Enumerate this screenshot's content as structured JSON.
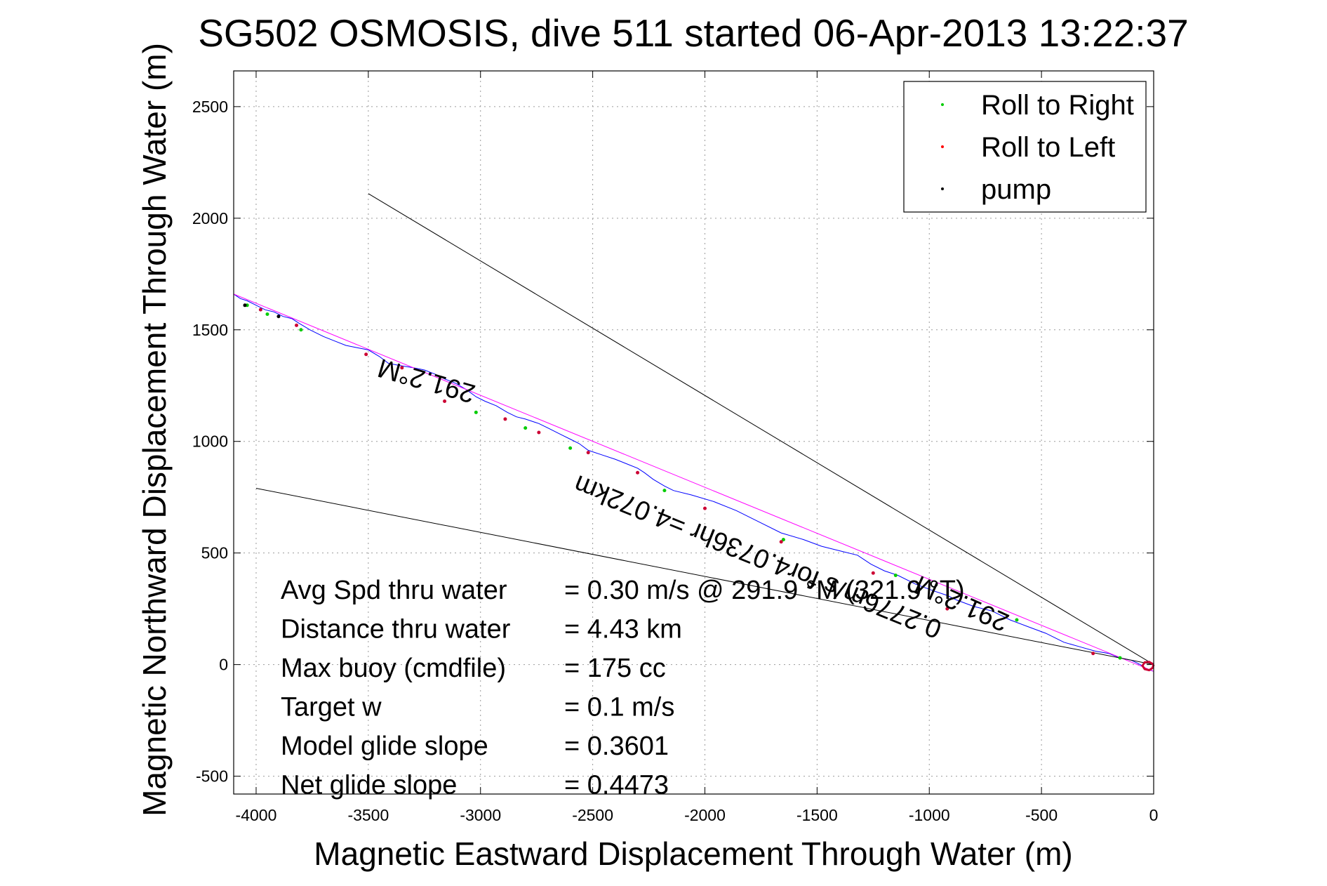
{
  "chart_data": {
    "type": "line",
    "title": "SG502 OSMOSIS, dive 511 started 06-Apr-2013 13:22:37",
    "xlabel": "Magnetic Eastward Displacement Through Water (m)",
    "ylabel": "Magnetic Northward Displacement Through Water (m)",
    "xlim": [
      -4100,
      0
    ],
    "ylim": [
      -580,
      2660
    ],
    "xticks": [
      -4000,
      -3500,
      -3000,
      -2500,
      -2000,
      -1500,
      -1000,
      -500,
      0
    ],
    "xtick_labels": [
      "-4000",
      "-3500",
      "-3000",
      "-2500",
      "-2000",
      "-1500",
      "-1000",
      "-500",
      "0"
    ],
    "yticks": [
      -500,
      0,
      500,
      1000,
      1500,
      2000,
      2500
    ],
    "ytick_labels": [
      "-500",
      "0",
      "500",
      "1000",
      "1500",
      "2000",
      "2500"
    ],
    "grid": true,
    "legend_placement": "top-right",
    "legend": [
      {
        "label": "Roll to Right",
        "color": "#00cc00"
      },
      {
        "label": "Roll to Left",
        "color": "#ff0000"
      },
      {
        "label": "pump",
        "color": "#000000"
      }
    ],
    "series": [
      {
        "color": "#0000ff",
        "x": [
          0,
          -30,
          -60,
          -100,
          -150,
          -200,
          -260,
          -330,
          -400,
          -480,
          -560,
          -640,
          -720,
          -800,
          -880,
          -920,
          -980,
          -1060,
          -1140,
          -1200,
          -1260,
          -1320,
          -1400,
          -1480,
          -1560,
          -1660,
          -1760,
          -1860,
          -1960,
          -2060,
          -2140,
          -2180,
          -2230,
          -2270,
          -2300,
          -2350,
          -2400,
          -2460,
          -2520,
          -2560,
          -2600,
          -2640,
          -2700,
          -2740,
          -2800,
          -2840,
          -2880,
          -2930,
          -2980,
          -3020,
          -3060,
          -3110,
          -3160,
          -3200,
          -3250,
          -3300,
          -3360,
          -3410,
          -3450,
          -3500,
          -3550,
          -3600,
          -3650,
          -3700,
          -3760,
          -3810,
          -3840,
          -3880,
          -3920,
          -3960,
          -4000,
          -4040,
          -4070,
          -4100
        ],
        "y": [
          -30,
          -20,
          0,
          20,
          30,
          50,
          60,
          80,
          100,
          140,
          170,
          200,
          240,
          260,
          290,
          310,
          330,
          360,
          400,
          420,
          450,
          490,
          510,
          530,
          560,
          590,
          640,
          690,
          730,
          760,
          780,
          800,
          830,
          860,
          880,
          900,
          920,
          940,
          960,
          990,
          1010,
          1030,
          1060,
          1080,
          1100,
          1110,
          1130,
          1160,
          1180,
          1200,
          1230,
          1260,
          1280,
          1300,
          1320,
          1330,
          1340,
          1350,
          1380,
          1410,
          1420,
          1430,
          1450,
          1470,
          1500,
          1530,
          1550,
          1560,
          1580,
          1590,
          1610,
          1630,
          1640,
          1660
        ]
      },
      {
        "color": "#ff00ff",
        "x": [
          0,
          -4100
        ],
        "y": [
          -30,
          1660
        ]
      },
      {
        "color": "#000000",
        "x": [
          0,
          -3500
        ],
        "y": [
          0,
          2110
        ]
      },
      {
        "color": "#000000",
        "x": [
          0,
          -4000
        ],
        "y": [
          0,
          790
        ]
      },
      {
        "color": "#cc0033",
        "x": [
          0,
          -5,
          -20,
          -40,
          -50,
          -40,
          -20,
          0
        ],
        "y": [
          0,
          -15,
          -25,
          -20,
          -5,
          10,
          12,
          0
        ]
      }
    ],
    "markers": [
      {
        "kind": "Roll to Right",
        "color": "#00cc00",
        "x": [
          -150,
          -610,
          -1150,
          -1650,
          -2180,
          -2600,
          -2800,
          -3020,
          -3800,
          -3950,
          -4040
        ],
        "y": [
          30,
          200,
          400,
          560,
          780,
          970,
          1060,
          1130,
          1500,
          1570,
          1610
        ]
      },
      {
        "kind": "Roll to Left",
        "color": "#cc0033",
        "x": [
          -270,
          -920,
          -1250,
          -1660,
          -2000,
          -2300,
          -2520,
          -2740,
          -2890,
          -3160,
          -3350,
          -3510,
          -3820,
          -3980
        ],
        "y": [
          50,
          250,
          410,
          550,
          700,
          860,
          950,
          1040,
          1100,
          1180,
          1330,
          1390,
          1520,
          1590
        ]
      },
      {
        "kind": "pump",
        "color": "#000000",
        "x": [
          -4050,
          -3900
        ],
        "y": [
          1610,
          1560
        ]
      }
    ],
    "annotations": [
      {
        "text": "291.2°M",
        "x": -3230,
        "y": 1310,
        "rotate": 196
      },
      {
        "text": "0.2776m/s for4.0736hr =4.072km",
        "x": -1750,
        "y": 520,
        "rotate": 202
      },
      {
        "text": "291.2°M",
        "x": -840,
        "y": 310,
        "rotate": 204
      }
    ],
    "stats": [
      {
        "label": "Avg Spd thru water",
        "value": "=  0.30 m/s @ 291.9 °M (321.9 °T)"
      },
      {
        "label": "Distance thru water",
        "value": "=  4.43 km"
      },
      {
        "label": "Max buoy (cmdfile)",
        "value": "= 175 cc"
      },
      {
        "label": "Target w",
        "value": "= 0.1 m/s"
      },
      {
        "label": "Model glide slope",
        "value": "= 0.3601"
      },
      {
        "label": "Net glide slope",
        "value": "= 0.4473"
      }
    ]
  }
}
